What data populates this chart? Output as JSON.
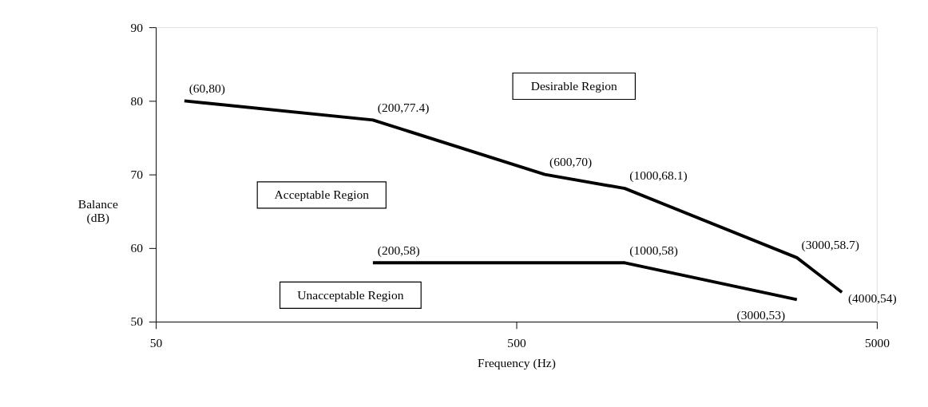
{
  "chart_data": {
    "type": "line",
    "xlabel": "Frequency (Hz)",
    "ylabel": "Balance\n(dB)",
    "log": "x",
    "xlim": [
      50,
      5000
    ],
    "xticks": [
      50,
      500,
      5000
    ],
    "ylim": [
      50,
      90
    ],
    "yticks": [
      50,
      60,
      70,
      80,
      90
    ],
    "grid": false,
    "marker": "none",
    "line_style": "solid",
    "series": [
      {
        "color": "#000000",
        "x": [
          60,
          200,
          600,
          1000,
          3000,
          4000
        ],
        "values": [
          80,
          77.4,
          70,
          68.1,
          58.7,
          54
        ]
      },
      {
        "color": "#000000",
        "x": [
          200,
          1000,
          3000
        ],
        "values": [
          58,
          58,
          53
        ]
      }
    ],
    "annotations": [
      "Desirable Region",
      "Acceptable Region",
      "Unacceptable Region",
      {
        "text": "(60,80)",
        "x": 60,
        "y": 80
      },
      {
        "text": "(200,77.4)",
        "x": 200,
        "y": 77.4
      },
      {
        "text": "(600,70)",
        "x": 600,
        "y": 70
      },
      {
        "text": "(1000,68.1)",
        "x": 1000,
        "y": 68.1
      },
      {
        "text": "(3000,58.7)",
        "x": 3000,
        "y": 58.7
      },
      {
        "text": "(4000,54)",
        "x": 4000,
        "y": 54
      },
      {
        "text": "(200,58)",
        "x": 200,
        "y": 58
      },
      {
        "text": "(1000,58)",
        "x": 1000,
        "y": 58
      },
      {
        "text": "(3000,53)",
        "x": 3000,
        "y": 53
      }
    ]
  }
}
